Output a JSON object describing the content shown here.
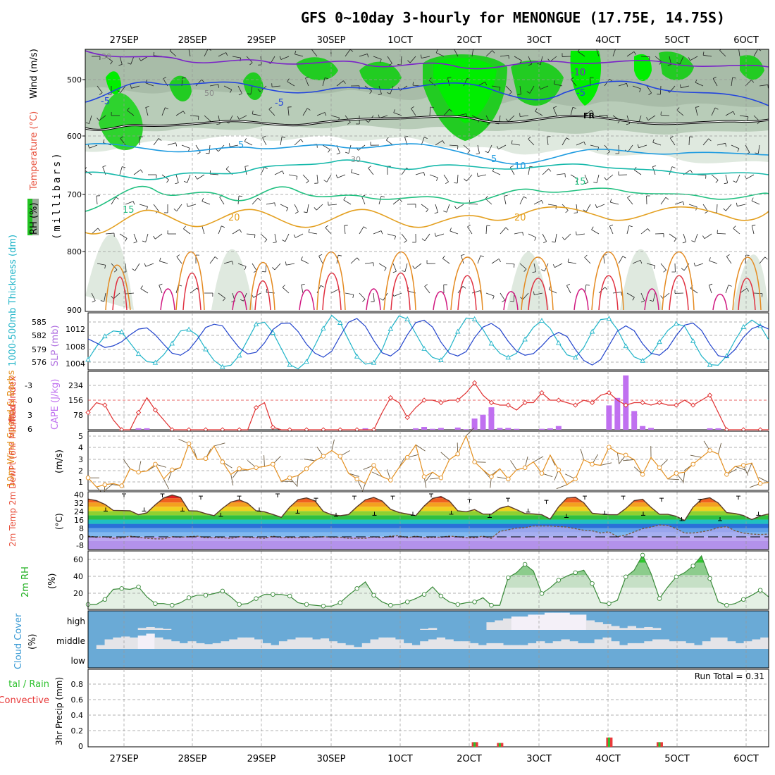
{
  "title": "GFS 0~10day 3-hourly for MENONGUE (17.75E, 14.75S)",
  "date_labels": [
    "27SEP",
    "28SEP",
    "29SEP",
    "30SEP",
    "1OCT",
    "2OCT",
    "3OCT",
    "4OCT",
    "5OCT",
    "6OCT"
  ],
  "colors": {
    "temp_label": "#e8503c",
    "rh_green": "#22c322",
    "wind_label": "#000000",
    "thick_label": "#20b4c8",
    "slp_label": "#b070e0",
    "lifted_label": "#e03030",
    "cape_label": "#c070f0",
    "wind10_label": "#e49020",
    "rh2m_label": "#22b022",
    "cloud_label": "#3a9ad4",
    "precip_total": "#2ec12e",
    "precip_conv": "#e83a3a"
  },
  "panels": {
    "upper_air": {
      "y_label_parts": [
        "RH (%)",
        "Temperature (°C)",
        "Wind (m/s)"
      ],
      "axis_label": "(millibars)",
      "y_ticks": [
        "500",
        "600",
        "700",
        "800",
        "900"
      ],
      "contour_labels": [
        "30",
        "-10",
        "50",
        "-5",
        "-5",
        "-5",
        "FR",
        "5",
        "5",
        "10",
        "15",
        "15",
        "20",
        "20",
        "30"
      ]
    },
    "pressure": {
      "left_label": "1000-500mb Thickness (dm)",
      "right_label": "SLP (mb)",
      "left_ticks": [
        "585",
        "582",
        "579",
        "576"
      ],
      "right_ticks": [
        "1012",
        "1008",
        "1004"
      ],
      "chart_data": {
        "type": "line",
        "series": [
          {
            "name": "1000-500mb Thickness (dm)",
            "unit": "dm",
            "values": [
              577.0,
              579.5,
              581.5,
              582.5,
              582.3,
              580.2,
              578.1,
              576.6,
              576.4,
              577.9,
              580.1,
              582.5,
              582.8,
              581.7,
              579.0,
              576.8,
              575.6,
              575.9,
              577.8,
              580.8,
              583.8,
              584.2,
              582.2,
              579.1,
              576.0,
              575.2,
              576.6,
              579.7,
              583.0,
              585.5,
              584.1,
              580.8,
              577.6,
              576.1,
              576.4,
              578.9,
              582.9,
              585.4,
              584.8,
              582.0,
              579.1,
              577.4,
              576.9,
              579.0,
              582.4,
              585.0,
              584.8,
              582.8,
              580.1,
              578.2,
              577.4,
              578.2,
              580.9,
              583.2,
              584.5,
              583.0,
              580.2,
              577.9,
              577.4,
              579.3,
              582.4,
              584.7,
              584.9,
              582.8,
              579.6,
              577.5,
              576.8,
              578.0,
              580.4,
              582.6,
              583.9,
              583.4,
              580.6,
              577.7,
              576.0,
              575.9,
              577.7,
              580.7,
              583.3,
              584.6,
              583.5,
              580.8
            ]
          },
          {
            "name": "SLP (mb)",
            "unit": "mb",
            "values": [
              1009.6,
              1008.6,
              1007.5,
              1007.9,
              1008.9,
              1010.6,
              1012.0,
              1012.3,
              1010.6,
              1008.3,
              1006.1,
              1005.6,
              1006.9,
              1009.5,
              1012.4,
              1013.2,
              1012.8,
              1010.0,
              1007.4,
              1005.9,
              1006.3,
              1008.6,
              1011.9,
              1013.4,
              1013.5,
              1011.4,
              1008.3,
              1006.1,
              1005.1,
              1006.6,
              1010.3,
              1013.7,
              1014.6,
              1012.7,
              1009.2,
              1006.2,
              1005.4,
              1007.0,
              1010.6,
              1013.6,
              1014.2,
              1012.5,
              1008.8,
              1006.1,
              1005.4,
              1006.5,
              1009.9,
              1012.5,
              1013.4,
              1012.0,
              1009.0,
              1006.6,
              1005.6,
              1006.0,
              1007.9,
              1010.1,
              1011.2,
              1010.2,
              1007.0,
              1004.3,
              1003.2,
              1004.5,
              1008.0,
              1011.5,
              1012.8,
              1011.6,
              1008.4,
              1006.1,
              1005.6,
              1007.3,
              1010.4,
              1013.0,
              1013.5,
              1011.7,
              1008.3,
              1005.5,
              1005.1,
              1007.0,
              1010.0,
              1012.1,
              1012.9,
              1012.0
            ]
          }
        ],
        "ylim_left": [
          575,
          586
        ],
        "ylim_right": [
          1002,
          1016
        ]
      }
    },
    "instability": {
      "left_label": "Lifted Index",
      "right_label": "CAPE (J/kg)",
      "left_ticks": [
        "-3",
        "0",
        "3",
        "6"
      ],
      "right_ticks": [
        "234",
        "156",
        "78"
      ],
      "chart_data": {
        "type": "bar+line",
        "lifted_index": [
          2.5,
          0.5,
          1.0,
          4.0,
          6.0,
          6.0,
          2.5,
          -0.5,
          2.0,
          4.0,
          6.0,
          6.0,
          6.0,
          6.0,
          6.0,
          6.0,
          6.0,
          6.0,
          6.0,
          6.0,
          1.5,
          0.5,
          5.5,
          6.0,
          6.0,
          6.0,
          6.0,
          6.0,
          6.0,
          6.0,
          6.0,
          6.0,
          6.0,
          6.0,
          6.0,
          2.5,
          -0.5,
          0.5,
          3.5,
          1.5,
          0.0,
          0.0,
          0.5,
          0.0,
          0.0,
          -1.5,
          -3.5,
          -1.0,
          0.5,
          1.0,
          1.0,
          2.0,
          0.5,
          0.5,
          -1.5,
          0.0,
          0.0,
          0.5,
          1.0,
          0.0,
          0.5,
          -1.0,
          -1.5,
          0.0,
          1.0,
          0.5,
          0.5,
          1.0,
          0.5,
          1.0,
          1.0,
          0.0,
          1.0,
          0.0,
          -1.0,
          2.5,
          6.0,
          6.0,
          6.0,
          6.0,
          6.0,
          6.0
        ],
        "cape": [
          0,
          0,
          0,
          0,
          0,
          0,
          8,
          8,
          0,
          0,
          0,
          0,
          0,
          0,
          0,
          0,
          0,
          0,
          0,
          0,
          0,
          0,
          0,
          0,
          0,
          0,
          0,
          0,
          0,
          0,
          0,
          0,
          0,
          8,
          0,
          0,
          0,
          0,
          0,
          8,
          15,
          5,
          10,
          0,
          12,
          3,
          60,
          80,
          120,
          10,
          10,
          5,
          0,
          0,
          5,
          8,
          20,
          0,
          0,
          0,
          0,
          0,
          130,
          170,
          290,
          100,
          20,
          10,
          0,
          0,
          0,
          0,
          0,
          0,
          8,
          8,
          0,
          0,
          0,
          0,
          0,
          0
        ],
        "li_ylim": [
          6,
          -6
        ],
        "cape_ylim": [
          0,
          312
        ]
      }
    },
    "wind10m": {
      "left_label": "10m Wind Speed & Barbs",
      "unit": "(m/s)",
      "y_ticks": [
        "5",
        "4",
        "3",
        "2",
        "1"
      ],
      "chart_data": {
        "type": "line",
        "values": [
          1.5,
          0.7,
          0.9,
          1.0,
          0.8,
          2.3,
          2.0,
          2.1,
          2.7,
          1.4,
          2.2,
          2.4,
          4.5,
          3.1,
          3.2,
          4.3,
          2.9,
          1.8,
          2.3,
          2.2,
          2.4,
          2.5,
          2.7,
          1.2,
          1.5,
          1.7,
          2.3,
          3.0,
          3.4,
          3.9,
          3.4,
          1.9,
          1.4,
          1.0,
          2.6,
          1.6,
          1.3,
          2.4,
          3.3,
          4.4,
          1.6,
          2.0,
          1.5,
          3.1,
          3.6,
          5.2,
          2.9,
          2.2,
          1.6,
          2.3,
          1.4,
          2.2,
          2.4,
          2.9,
          1.9,
          3.5,
          2.2,
          0.9,
          1.4,
          3.1,
          2.7,
          2.6,
          4.2,
          3.7,
          3.5,
          3.1,
          1.8,
          3.3,
          2.4,
          1.4,
          1.9,
          2.0,
          2.7,
          3.3,
          3.9,
          3.6,
          1.8,
          2.5,
          2.6,
          2.8,
          1.0,
          1.1
        ],
        "ylim": [
          0.4,
          5.6
        ]
      }
    },
    "temps": {
      "left_label": "2m Temp 2m DewPt (6hr Min/Max)",
      "unit": "(°C)",
      "y_ticks": [
        "40",
        "32",
        "24",
        "16",
        "8",
        "0",
        "-8"
      ],
      "chart_data": {
        "type": "area+line",
        "temperature": [
          35.2,
          33.7,
          30.3,
          24.6,
          24.4,
          24.2,
          20.6,
          22.4,
          29.8,
          36.2,
          39.0,
          36.7,
          24.3,
          24.0,
          21.5,
          19.7,
          26.5,
          32.4,
          34.4,
          31.2,
          24.2,
          23.3,
          20.8,
          18.1,
          27.6,
          34.7,
          36.3,
          33.5,
          23.6,
          20.5,
          19.6,
          20.7,
          28.0,
          34.4,
          36.7,
          33.4,
          25.6,
          22.7,
          21.2,
          19.7,
          28.6,
          35.8,
          37.6,
          33.4,
          24.2,
          23.3,
          25.4,
          21.2,
          21.1,
          26.6,
          28.6,
          25.3,
          21.7,
          21.3,
          20.5,
          16.5,
          28.0,
          36.2,
          36.9,
          31.7,
          21.9,
          21.1,
          20.5,
          20.5,
          26.4,
          33.8,
          35.0,
          27.5,
          21.0,
          21.0,
          19.1,
          15.1,
          27.6,
          34.9,
          36.4,
          31.5,
          22.5,
          21.7,
          19.8,
          16.0,
          19.4,
          21.3
        ],
        "dewpoint": [
          0.5,
          -0.5,
          0.0,
          -1.5,
          -1.0,
          0.5,
          -0.5,
          -1.5,
          -2.0,
          -2.0,
          0.0,
          -0.5,
          0.0,
          0.5,
          -1.0,
          -1.0,
          -1.0,
          -1.5,
          0.0,
          -0.5,
          -1.0,
          -1.5,
          0.5,
          -1.0,
          -1.0,
          -1.0,
          -0.5,
          -0.5,
          0.0,
          -0.5,
          -0.5,
          -1.5,
          -1.5,
          -1.5,
          0.0,
          -1.0,
          0.5,
          1.0,
          -1.0,
          0.5,
          -1.0,
          -0.5,
          -0.5,
          0.5,
          0.0,
          -1.0,
          -1.0,
          0.5,
          -1.5,
          5.0,
          6.5,
          8.0,
          8.5,
          10.0,
          10.0,
          10.0,
          9.5,
          9.0,
          7.5,
          6.0,
          5.5,
          3.5,
          4.5,
          0.0,
          1.5,
          4.5,
          7.5,
          9.0,
          11.0,
          10.5,
          7.5,
          3.5,
          3.5,
          4.5,
          6.0,
          8.5,
          9.5,
          5.5,
          3.5,
          2.5,
          2.0,
          2.5
        ],
        "min_marks": [
          24,
          24,
          24,
          19,
          24,
          22,
          19,
          20,
          20,
          21,
          18,
          23,
          18,
          21,
          20,
          15,
          15,
          20
        ],
        "max_marks": [
          40,
          40,
          38,
          38,
          40,
          36,
          38,
          38,
          40,
          35,
          36,
          34,
          38,
          38,
          36,
          35,
          38,
          36
        ],
        "ylim": [
          -12,
          42
        ]
      }
    },
    "rh2m": {
      "left_label": "2m RH",
      "unit": "(%)",
      "y_ticks": [
        "60",
        "40",
        "20"
      ],
      "chart_data": {
        "type": "area+line",
        "values": [
          10,
          10,
          16,
          28,
          29,
          28,
          31,
          19,
          11,
          11,
          9,
          12,
          18,
          21,
          21,
          23,
          26,
          19,
          10,
          11,
          17,
          22,
          22,
          22,
          20,
          12,
          10,
          9,
          8,
          8,
          12,
          21,
          29,
          37,
          21,
          13,
          9,
          10,
          13,
          17,
          22,
          31,
          20,
          13,
          10,
          12,
          13,
          18,
          9,
          9,
          42,
          48,
          58,
          50,
          23,
          30,
          39,
          44,
          48,
          51,
          35,
          12,
          11,
          15,
          43,
          51,
          69,
          47,
          17,
          31,
          43,
          48,
          56,
          68,
          41,
          13,
          9,
          11,
          16,
          21,
          27,
          19
        ],
        "ylim": [
          4,
          74
        ]
      }
    },
    "cloud": {
      "left_label": "Cloud Cover",
      "unit": "(%)",
      "y_ticks": [
        "high",
        "middle",
        "low"
      ],
      "chart_data": {
        "type": "heatmap",
        "levels": [
          "high",
          "middle",
          "low"
        ],
        "high": [
          0,
          0,
          0,
          0,
          0,
          0,
          10,
          15,
          10,
          5,
          0,
          0,
          0,
          0,
          0,
          0,
          0,
          0,
          0,
          0,
          0,
          0,
          0,
          0,
          0,
          0,
          0,
          0,
          0,
          0,
          0,
          0,
          0,
          0,
          0,
          0,
          0,
          0,
          0,
          0,
          5,
          10,
          0,
          0,
          0,
          0,
          0,
          0,
          40,
          50,
          60,
          70,
          70,
          80,
          80,
          90,
          90,
          90,
          80,
          80,
          50,
          40,
          30,
          20,
          10,
          20,
          10,
          15,
          10,
          0,
          0,
          0,
          0,
          0,
          0,
          0,
          0,
          0,
          0,
          0,
          0,
          0
        ],
        "middle": [
          0,
          20,
          50,
          60,
          65,
          60,
          70,
          80,
          60,
          50,
          40,
          30,
          40,
          30,
          25,
          30,
          40,
          50,
          60,
          60,
          50,
          30,
          20,
          40,
          50,
          60,
          60,
          50,
          55,
          40,
          30,
          20,
          10,
          30,
          50,
          60,
          60,
          50,
          30,
          20,
          40,
          50,
          60,
          50,
          40,
          40,
          30,
          20,
          30,
          30,
          20,
          20,
          20,
          30,
          40,
          30,
          40,
          50,
          40,
          30,
          30,
          50,
          60,
          40,
          20,
          30,
          30,
          40,
          50,
          50,
          40,
          40,
          30,
          20,
          40,
          60,
          60,
          40,
          30,
          40,
          50,
          60
        ],
        "low": [
          0,
          0,
          0,
          0,
          0,
          0,
          0,
          0,
          0,
          0,
          0,
          0,
          0,
          0,
          0,
          0,
          0,
          0,
          0,
          0,
          0,
          0,
          0,
          0,
          0,
          0,
          0,
          0,
          0,
          0,
          0,
          0,
          0,
          0,
          0,
          0,
          0,
          0,
          0,
          0,
          0,
          0,
          0,
          0,
          0,
          0,
          0,
          0,
          0,
          0,
          0,
          0,
          0,
          0,
          0,
          0,
          0,
          0,
          0,
          0,
          0,
          0,
          0,
          0,
          0,
          0,
          0,
          0,
          0,
          0,
          0,
          0,
          0,
          0,
          0,
          0,
          0,
          0,
          0,
          0,
          0,
          0
        ]
      }
    },
    "precip": {
      "left_label": "Total / Rain / Convective",
      "axis_label": "3hr Precip (mm)",
      "run_total": "Run Total = 0.31",
      "y_ticks": [
        "0.8",
        "0.6",
        "0.4",
        "0.2",
        "0"
      ],
      "chart_data": {
        "type": "bar",
        "values": [
          0,
          0,
          0,
          0,
          0,
          0,
          0,
          0,
          0,
          0,
          0,
          0,
          0,
          0,
          0,
          0,
          0,
          0,
          0,
          0,
          0,
          0,
          0,
          0,
          0,
          0,
          0,
          0,
          0,
          0,
          0,
          0,
          0,
          0,
          0,
          0,
          0,
          0,
          0,
          0,
          0,
          0,
          0,
          0,
          0,
          0,
          0.06,
          0,
          0,
          0.05,
          0,
          0,
          0,
          0,
          0,
          0,
          0,
          0,
          0,
          0,
          0,
          0,
          0.12,
          0,
          0,
          0,
          0,
          0,
          0.06,
          0,
          0,
          0,
          0,
          0,
          0,
          0,
          0,
          0,
          0,
          0,
          0,
          0
        ],
        "ylim": [
          0,
          1.0
        ]
      }
    }
  }
}
